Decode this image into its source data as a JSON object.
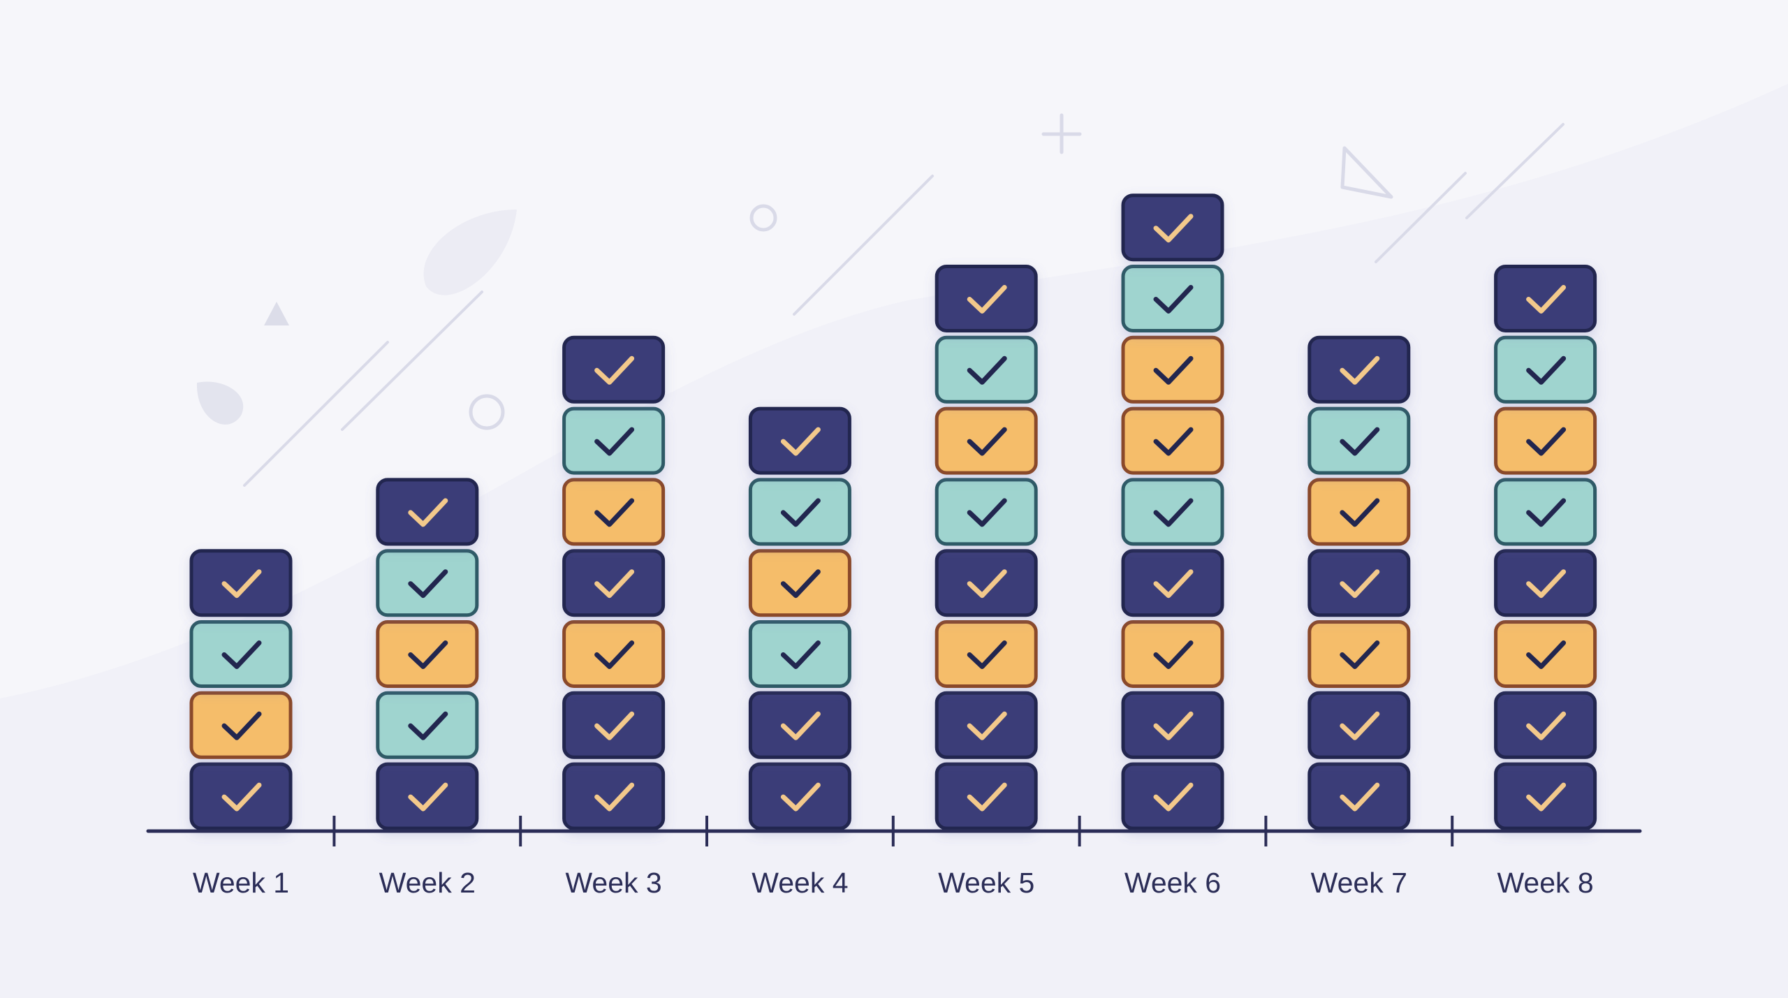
{
  "chart_data": {
    "type": "bar",
    "title": "",
    "xlabel": "",
    "ylabel": "",
    "categories": [
      "Week 1",
      "Week 2",
      "Week 3",
      "Week 4",
      "Week 5",
      "Week 6",
      "Week 7",
      "Week 8"
    ],
    "values": [
      4,
      5,
      7,
      6,
      8,
      9,
      7,
      8
    ],
    "ylim": [
      0,
      9
    ],
    "grid": false,
    "legend": "none",
    "stacks_bottom_to_top": [
      [
        "navy",
        "amber",
        "teal",
        "navy"
      ],
      [
        "navy",
        "teal",
        "amber",
        "teal",
        "navy"
      ],
      [
        "navy",
        "navy",
        "amber",
        "navy",
        "amber",
        "teal",
        "navy"
      ],
      [
        "navy",
        "navy",
        "teal",
        "amber",
        "teal",
        "navy"
      ],
      [
        "navy",
        "navy",
        "amber",
        "navy",
        "teal",
        "amber",
        "teal",
        "navy"
      ],
      [
        "navy",
        "navy",
        "amber",
        "navy",
        "teal",
        "amber",
        "amber",
        "teal",
        "navy"
      ],
      [
        "navy",
        "navy",
        "amber",
        "navy",
        "amber",
        "teal",
        "navy"
      ],
      [
        "navy",
        "navy",
        "amber",
        "navy",
        "teal",
        "amber",
        "teal",
        "navy"
      ]
    ],
    "block_icon": "checkmark-icon"
  },
  "colors": {
    "background": "#f6f6fa",
    "axis": "#2b2d57",
    "navy_fill": "#3b3e78",
    "navy_border": "#23254f",
    "navy_check": "#f3c98b",
    "teal_fill": "#9fd4cf",
    "teal_border": "#2f5a66",
    "teal_check": "#23254f",
    "amber_fill": "#f5bd6b",
    "amber_border": "#8a4a2a",
    "amber_check": "#23254f",
    "decor": "#d9dae8"
  }
}
